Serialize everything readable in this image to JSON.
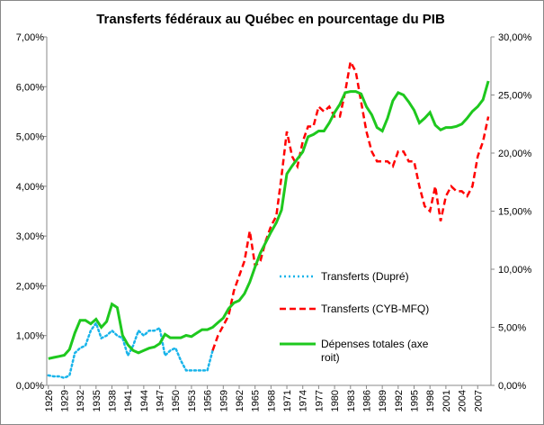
{
  "chart_data": {
    "type": "line",
    "title": "Transferts fédéraux au Québec en pourcentage du PIB",
    "x_tick_labels": [
      "1926",
      "1929",
      "1932",
      "1935",
      "1938",
      "1941",
      "1944",
      "1947",
      "1950",
      "1953",
      "1956",
      "1959",
      "1962",
      "1965",
      "1968",
      "1971",
      "1974",
      "1977",
      "1980",
      "1983",
      "1986",
      "1989",
      "1992",
      "1995",
      "1998",
      "2001",
      "2004",
      "2007"
    ],
    "y_left": {
      "range": [
        0,
        7
      ],
      "ticks": [
        "0,00%",
        "1,00%",
        "2,00%",
        "3,00%",
        "4,00%",
        "5,00%",
        "6,00%",
        "7,00%"
      ]
    },
    "y_right": {
      "range": [
        0,
        30
      ],
      "ticks": [
        "0,00%",
        "5,00%",
        "10,00%",
        "15,00%",
        "20,00%",
        "25,00%",
        "30,00%"
      ]
    },
    "grid": false,
    "legend_placement": "right-center",
    "series": [
      {
        "name": "Transferts (Dupré)",
        "axis": "left",
        "style": "dotted",
        "color": "#19b4ea",
        "start_year": 1926,
        "values": [
          0.2,
          0.18,
          0.18,
          0.15,
          0.2,
          0.65,
          0.75,
          0.8,
          1.1,
          1.25,
          0.95,
          1.0,
          1.1,
          1.0,
          0.95,
          0.6,
          0.8,
          1.1,
          1.0,
          1.1,
          1.1,
          1.15,
          0.6,
          0.7,
          0.75,
          0.5,
          0.3,
          0.3,
          0.3,
          0.3,
          0.3,
          0.7
        ]
      },
      {
        "name": "Transferts (CYB-MFQ)",
        "axis": "left",
        "style": "dashed",
        "color": "#ff0000",
        "start_year": 1957,
        "values": [
          0.7,
          1.0,
          1.2,
          1.4,
          1.9,
          2.2,
          2.5,
          3.1,
          2.4,
          2.5,
          2.9,
          3.2,
          3.4,
          4.2,
          5.1,
          4.6,
          4.4,
          4.9,
          5.2,
          5.2,
          5.6,
          5.5,
          5.6,
          5.4,
          5.4,
          5.9,
          6.5,
          6.3,
          5.7,
          5.1,
          4.7,
          4.5,
          4.5,
          4.5,
          4.4,
          4.7,
          4.7,
          4.5,
          4.5,
          4.0,
          3.6,
          3.5,
          4.0,
          3.3,
          3.8,
          4.0,
          3.9,
          3.9,
          3.8,
          4.0,
          4.6,
          4.9,
          5.4
        ]
      },
      {
        "name": "Dépenses totales (axe droit)",
        "axis": "right",
        "style": "solid",
        "color": "#1ec81e",
        "start_year": 1926,
        "values": [
          2.3,
          2.4,
          2.5,
          2.6,
          3.1,
          4.5,
          5.6,
          5.6,
          5.3,
          5.7,
          5.0,
          5.5,
          7.0,
          6.7,
          4.3,
          3.5,
          3.0,
          2.8,
          3.0,
          3.2,
          3.3,
          3.6,
          4.4,
          4.1,
          4.1,
          4.1,
          4.3,
          4.2,
          4.5,
          4.8,
          4.8,
          5.0,
          5.4,
          5.8,
          6.6,
          7.1,
          7.3,
          7.9,
          8.9,
          10.2,
          11.4,
          12.3,
          13.2,
          14.0,
          15.1,
          18.2,
          18.9,
          19.5,
          20.1,
          21.4,
          21.6,
          21.9,
          21.9,
          22.6,
          23.5,
          24.2,
          25.2,
          25.3,
          25.3,
          25.1,
          24.0,
          23.3,
          22.2,
          21.9,
          23.0,
          24.5,
          25.2,
          25.0,
          24.4,
          23.7,
          22.6,
          23.0,
          23.5,
          22.4,
          22.0,
          22.2,
          22.2,
          22.3,
          22.5,
          23.0,
          23.6,
          24.0,
          24.6,
          26.2
        ]
      }
    ]
  }
}
